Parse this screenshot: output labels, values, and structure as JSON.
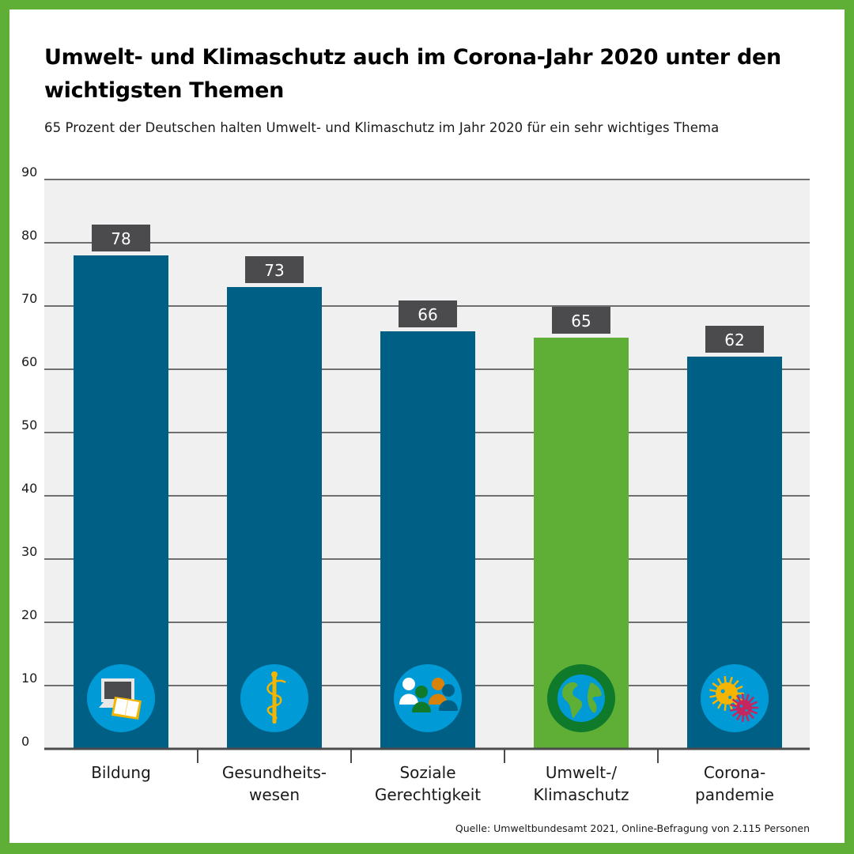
{
  "colors": {
    "frame": "#5fae35",
    "plot_bg": "#eff0ef",
    "bar_default": "#005f85",
    "bar_highlight": "#5fae35",
    "label_box": "#4b4b4d",
    "gridline": "#6e6e6e",
    "icon_circle": "#009ad6",
    "icon_ring_highlight": "#0e7a2a"
  },
  "header": {
    "title": "Umwelt- und Klimaschutz auch im Corona-Jahr 2020 unter den wichtigsten Themen",
    "subtitle": "65 Prozent der Deutschen halten Umwelt- und Klimaschutz im Jahr 2020 für ein sehr wichtiges Thema"
  },
  "footer": {
    "source": "Quelle: Umweltbundesamt 2021, Online-Befragung von 2.115 Personen"
  },
  "chart_data": {
    "type": "bar",
    "title": "Umwelt- und Klimaschutz auch im Corona-Jahr 2020 unter den wichtigsten Themen",
    "subtitle": "65 Prozent der Deutschen halten Umwelt- und Klimaschutz im Jahr 2020 für ein sehr wichtiges Thema",
    "xlabel": "",
    "ylabel": "",
    "ylim": [
      0,
      90
    ],
    "yticks": [
      0,
      10,
      20,
      30,
      40,
      50,
      60,
      70,
      80,
      90
    ],
    "grid": true,
    "categories": [
      [
        "Bildung"
      ],
      [
        "Gesundheits-",
        "wesen"
      ],
      [
        "Soziale",
        "Gerechtigkeit"
      ],
      [
        "Umwelt-/",
        "Klimaschutz"
      ],
      [
        "Corona-",
        "pandemie"
      ]
    ],
    "values": [
      78,
      73,
      66,
      65,
      62
    ],
    "highlight_index": 3,
    "icons": [
      "laptop-book-icon",
      "staff-of-asclepius-icon",
      "people-group-icon",
      "globe-icon",
      "virus-icon"
    ],
    "source": "Quelle: Umweltbundesamt 2021, Online-Befragung von 2.115 Personen"
  }
}
